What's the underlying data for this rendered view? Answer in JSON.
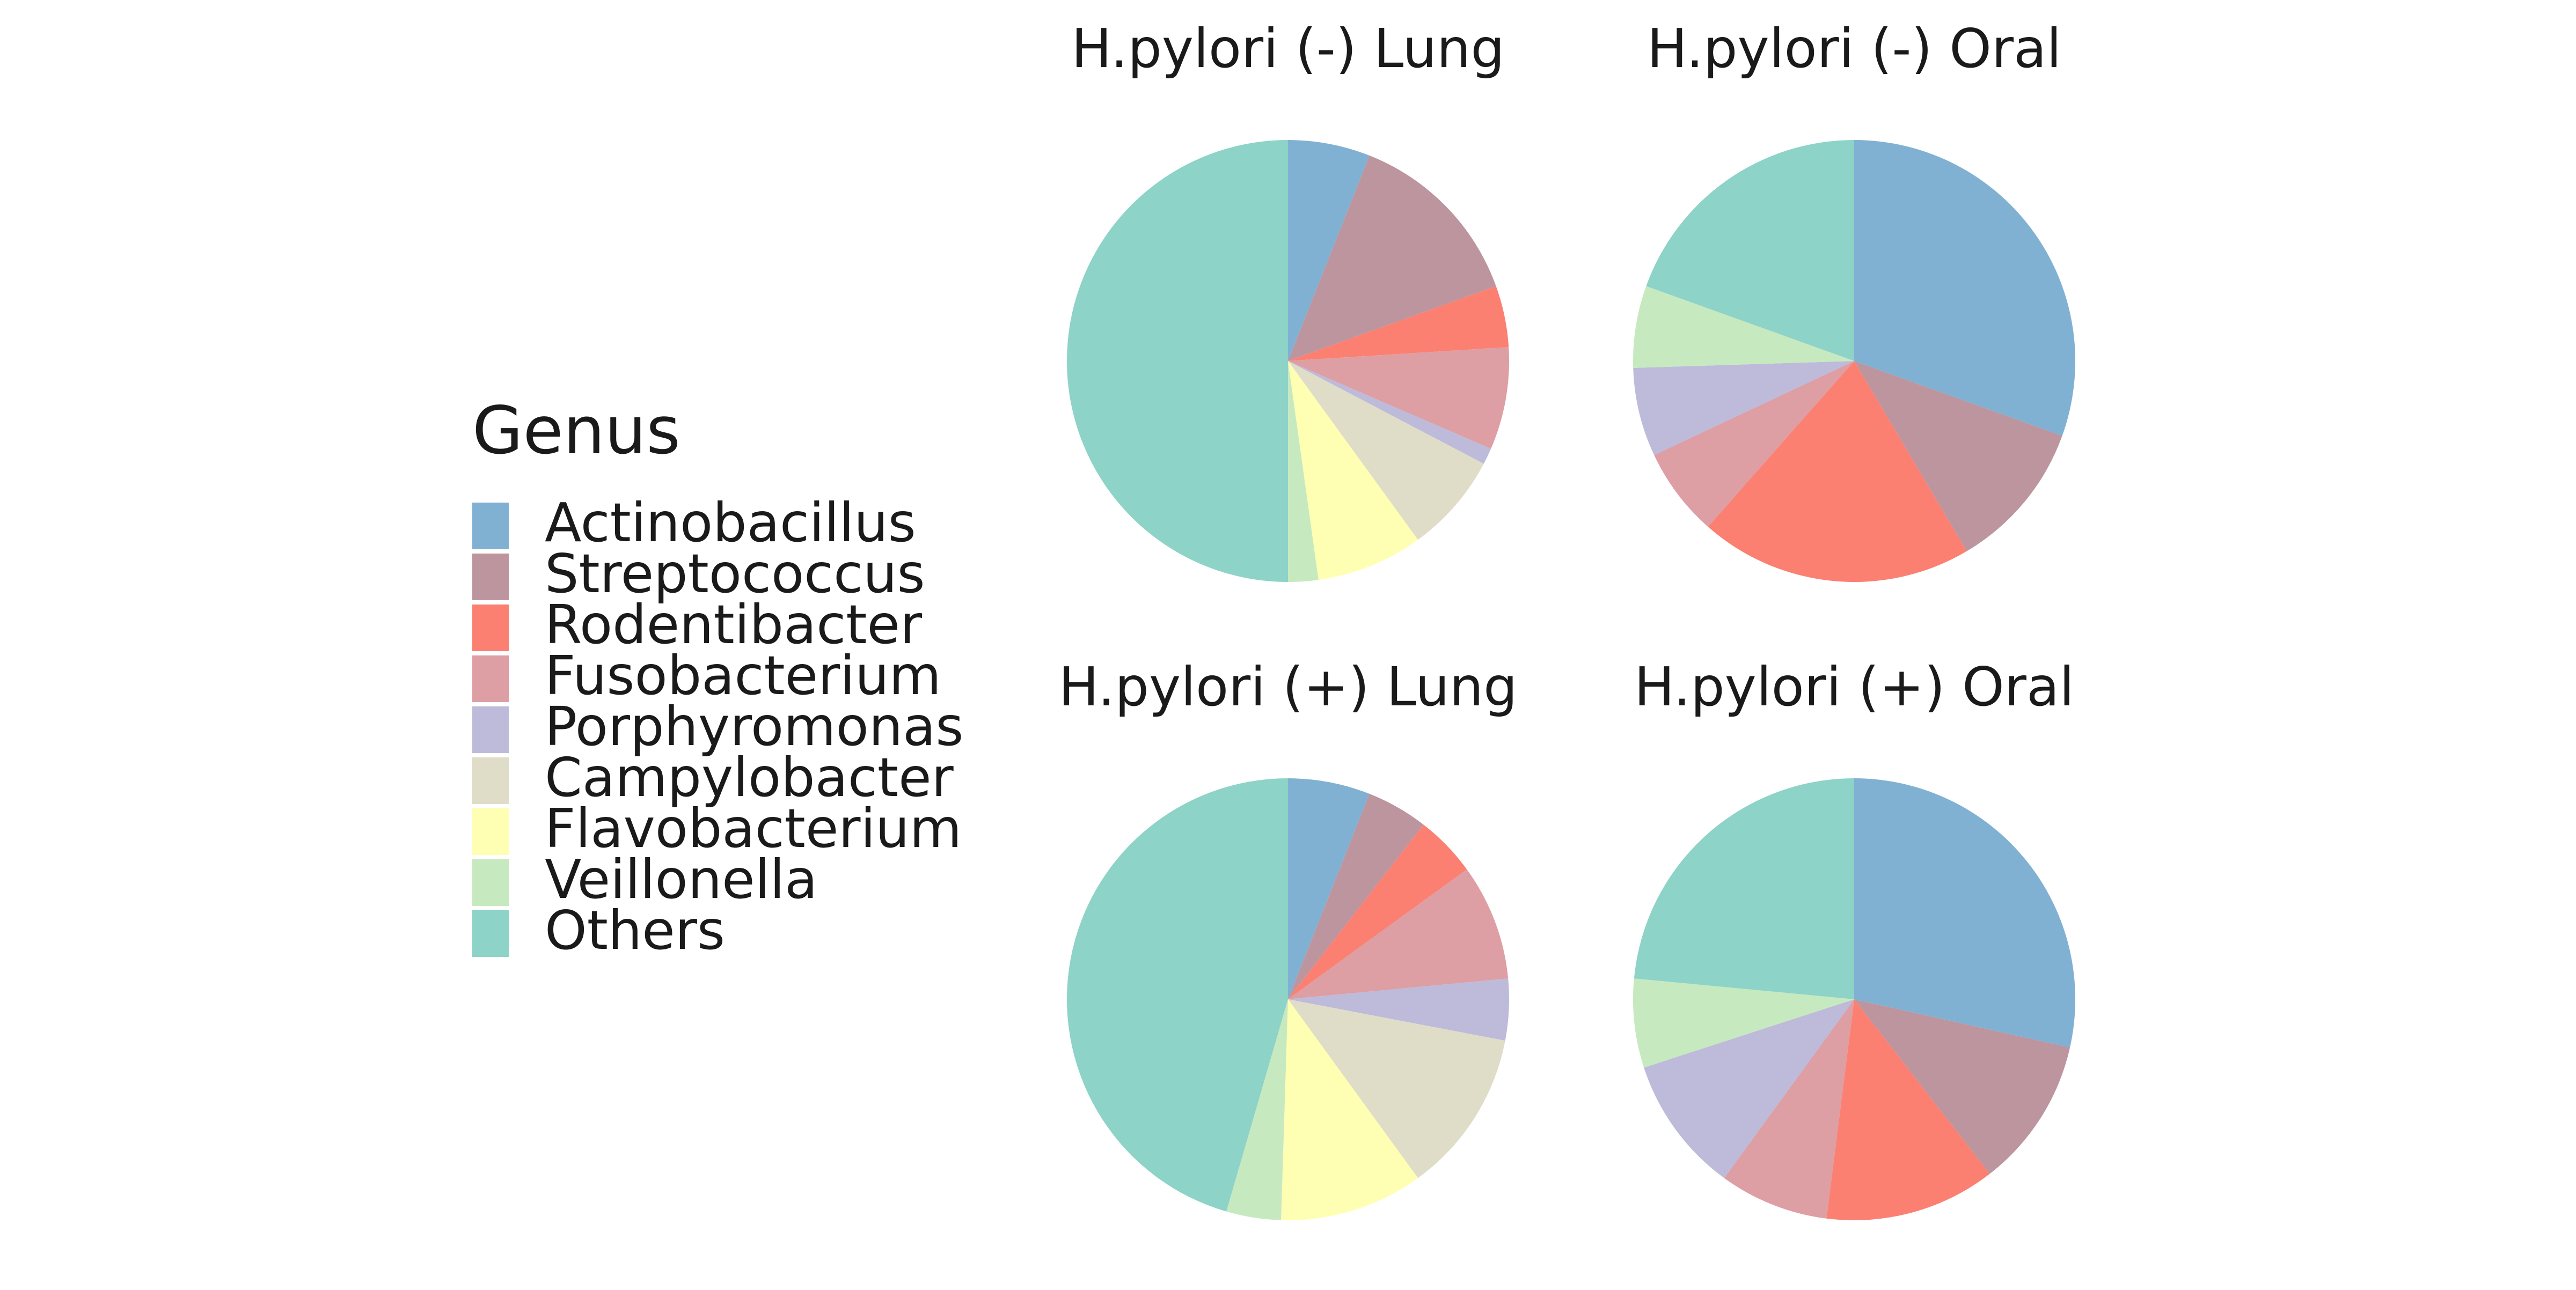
{
  "chart_data": {
    "type": "pie",
    "legend": {
      "title": "Genus",
      "placement": "left"
    },
    "categories": [
      "Actinobacillus",
      "Streptococcus",
      "Rodentibacter",
      "Fusobacterium",
      "Porphyromonas",
      "Campylobacter",
      "Flavobacterium",
      "Veillonella",
      "Others"
    ],
    "colors": [
      "#80b1d3",
      "#bc959f",
      "#fb8072",
      "#dd9ea4",
      "#bebada",
      "#dfddc8",
      "#ffffb3",
      "#c7e9c0",
      "#8dd3c7"
    ],
    "panels": [
      {
        "title": "H.pylori (-) Lung",
        "values": [
          6.0,
          13.5,
          4.5,
          7.5,
          1.2,
          7.3,
          7.8,
          2.2,
          50.0
        ]
      },
      {
        "title": "H.pylori (-) Oral",
        "values": [
          30.5,
          11.0,
          20.0,
          6.5,
          6.5,
          0,
          0,
          6.0,
          19.5
        ]
      },
      {
        "title": "H.pylori (+) Lung",
        "values": [
          6.0,
          4.5,
          4.5,
          8.5,
          4.5,
          12.0,
          10.5,
          4.0,
          45.5
        ]
      },
      {
        "title": "H.pylori (+) Oral",
        "values": [
          28.5,
          11.0,
          12.5,
          8.0,
          10.0,
          0,
          0,
          6.5,
          23.5
        ]
      }
    ]
  }
}
